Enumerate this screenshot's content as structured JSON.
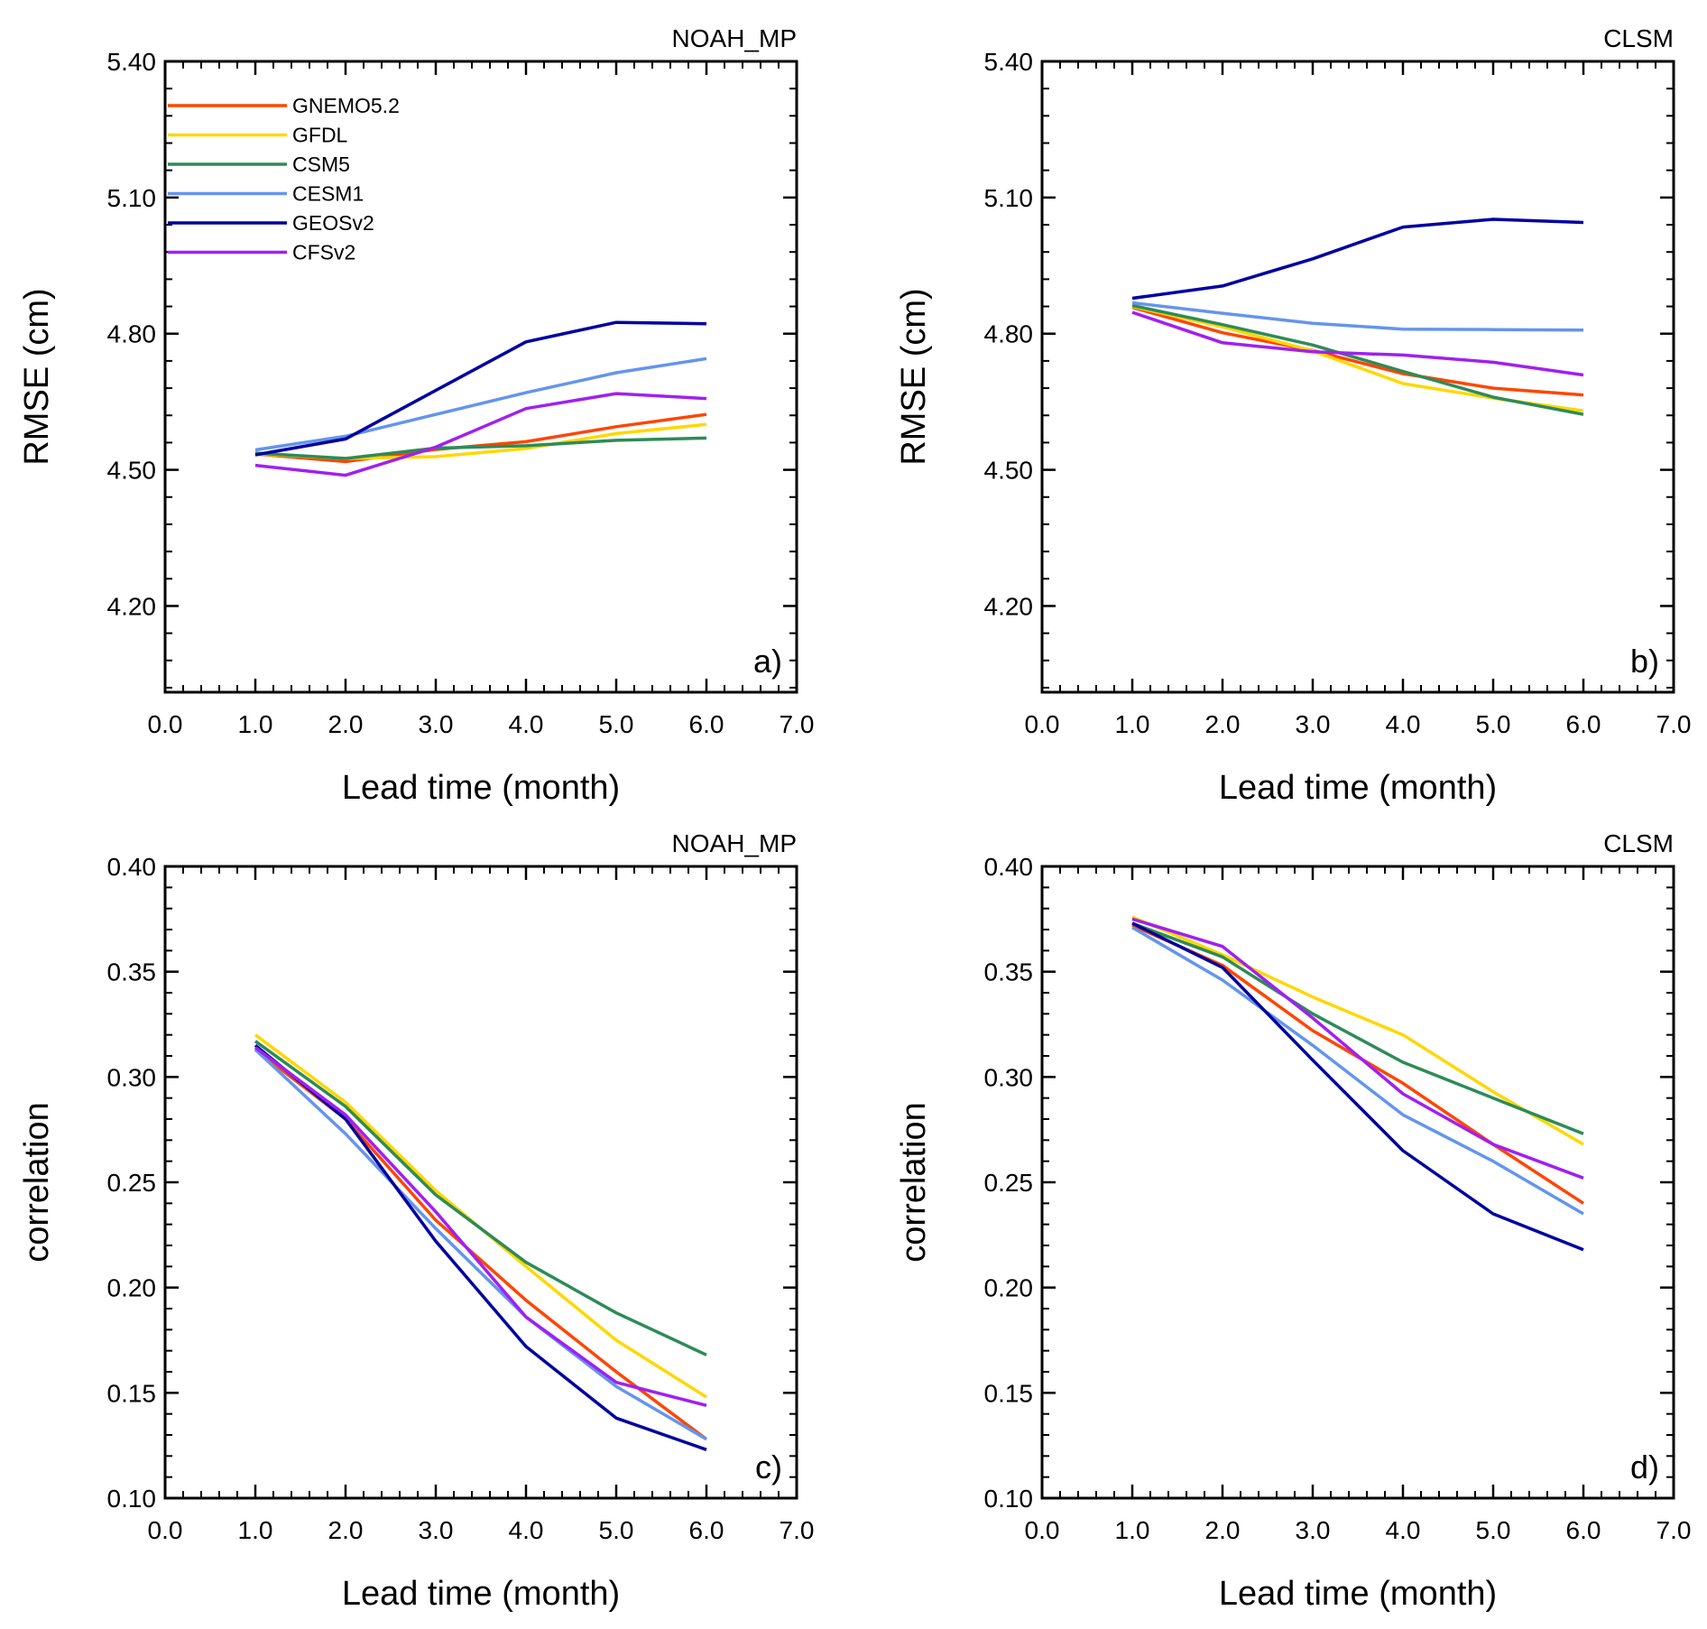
{
  "chart_data": [
    {
      "type": "line",
      "panel_label": "a)",
      "title_right": "NOAH_MP",
      "xlabel": "Lead time (month)",
      "ylabel": "RMSE (cm)",
      "xlim": [
        0,
        7
      ],
      "ylim": [
        4.01,
        5.4
      ],
      "xticks": [
        0,
        1,
        2,
        3,
        4,
        5,
        6,
        7
      ],
      "xtick_labels": [
        "0.0",
        "1.0",
        "2.0",
        "3.0",
        "4.0",
        "5.0",
        "6.0",
        "7.0"
      ],
      "yticks": [
        4.2,
        4.5,
        4.8,
        5.1,
        5.4
      ],
      "ytick_labels": [
        "4.20",
        "4.50",
        "4.80",
        "5.10",
        "5.40"
      ],
      "x": [
        1,
        2,
        3,
        4,
        5,
        6
      ],
      "legend": true,
      "legend_location": "top-left",
      "series": [
        {
          "name": "GNEMO5.2",
          "color": "#ff4500",
          "values": [
            4.535,
            4.518,
            4.545,
            4.562,
            4.595,
            4.622
          ]
        },
        {
          "name": "GFDL",
          "color": "#ffd700",
          "values": [
            4.535,
            4.525,
            4.529,
            4.547,
            4.58,
            4.6
          ]
        },
        {
          "name": "CSM5",
          "color": "#2e8b57",
          "values": [
            4.537,
            4.525,
            4.548,
            4.553,
            4.565,
            4.57
          ]
        },
        {
          "name": "CESM1",
          "color": "#6495ed",
          "values": [
            4.544,
            4.574,
            4.622,
            4.67,
            4.714,
            4.745
          ]
        },
        {
          "name": "GEOSv2",
          "color": "#0000a0",
          "values": [
            4.533,
            4.568,
            4.675,
            4.782,
            4.825,
            4.822
          ]
        },
        {
          "name": "CFSv2",
          "color": "#a020f0",
          "values": [
            4.51,
            4.488,
            4.55,
            4.635,
            4.668,
            4.657
          ]
        }
      ]
    },
    {
      "type": "line",
      "panel_label": "b)",
      "title_right": "CLSM",
      "xlabel": "Lead time (month)",
      "ylabel": "RMSE (cm)",
      "xlim": [
        0,
        7
      ],
      "ylim": [
        4.01,
        5.4
      ],
      "xticks": [
        0,
        1,
        2,
        3,
        4,
        5,
        6,
        7
      ],
      "xtick_labels": [
        "0.0",
        "1.0",
        "2.0",
        "3.0",
        "4.0",
        "5.0",
        "6.0",
        "7.0"
      ],
      "yticks": [
        4.2,
        4.5,
        4.8,
        5.1,
        5.4
      ],
      "ytick_labels": [
        "4.20",
        "4.50",
        "4.80",
        "5.10",
        "5.40"
      ],
      "x": [
        1,
        2,
        3,
        4,
        5,
        6
      ],
      "legend": false,
      "series": [
        {
          "name": "GNEMO5.2",
          "color": "#ff4500",
          "values": [
            4.858,
            4.802,
            4.763,
            4.712,
            4.68,
            4.665
          ]
        },
        {
          "name": "GFDL",
          "color": "#ffd700",
          "values": [
            4.86,
            4.815,
            4.762,
            4.69,
            4.658,
            4.63
          ]
        },
        {
          "name": "CSM5",
          "color": "#2e8b57",
          "values": [
            4.862,
            4.82,
            4.775,
            4.717,
            4.66,
            4.622
          ]
        },
        {
          "name": "CESM1",
          "color": "#6495ed",
          "values": [
            4.868,
            4.845,
            4.823,
            4.81,
            4.809,
            4.808
          ]
        },
        {
          "name": "GEOSv2",
          "color": "#0000a0",
          "values": [
            4.878,
            4.905,
            4.965,
            5.035,
            5.052,
            5.045
          ]
        },
        {
          "name": "CFSv2",
          "color": "#a020f0",
          "values": [
            4.847,
            4.78,
            4.76,
            4.753,
            4.737,
            4.709
          ]
        }
      ]
    },
    {
      "type": "line",
      "panel_label": "c)",
      "title_right": "NOAH_MP",
      "xlabel": "Lead time (month)",
      "ylabel": "correlation",
      "xlim": [
        0,
        7
      ],
      "ylim": [
        0.1,
        0.4
      ],
      "xticks": [
        0,
        1,
        2,
        3,
        4,
        5,
        6,
        7
      ],
      "xtick_labels": [
        "0.0",
        "1.0",
        "2.0",
        "3.0",
        "4.0",
        "5.0",
        "6.0",
        "7.0"
      ],
      "yticks": [
        0.1,
        0.15,
        0.2,
        0.25,
        0.3,
        0.35,
        0.4
      ],
      "ytick_labels": [
        "0.10",
        "0.15",
        "0.20",
        "0.25",
        "0.30",
        "0.35",
        "0.40"
      ],
      "x": [
        1,
        2,
        3,
        4,
        5,
        6
      ],
      "legend": false,
      "series": [
        {
          "name": "GNEMO5.2",
          "color": "#ff4500",
          "values": [
            0.313,
            0.28,
            0.232,
            0.194,
            0.16,
            0.128
          ]
        },
        {
          "name": "GFDL",
          "color": "#ffd700",
          "values": [
            0.32,
            0.288,
            0.246,
            0.21,
            0.175,
            0.148
          ]
        },
        {
          "name": "CSM5",
          "color": "#2e8b57",
          "values": [
            0.317,
            0.286,
            0.244,
            0.212,
            0.188,
            0.168
          ]
        },
        {
          "name": "CESM1",
          "color": "#6495ed",
          "values": [
            0.313,
            0.273,
            0.228,
            0.186,
            0.153,
            0.128
          ]
        },
        {
          "name": "GEOSv2",
          "color": "#0000a0",
          "values": [
            0.315,
            0.28,
            0.222,
            0.172,
            0.138,
            0.123
          ]
        },
        {
          "name": "CFSv2",
          "color": "#a020f0",
          "values": [
            0.314,
            0.282,
            0.236,
            0.186,
            0.155,
            0.144
          ]
        }
      ]
    },
    {
      "type": "line",
      "panel_label": "d)",
      "title_right": "CLSM",
      "xlabel": "Lead time (month)",
      "ylabel": "correlation",
      "xlim": [
        0,
        7
      ],
      "ylim": [
        0.1,
        0.4
      ],
      "xticks": [
        0,
        1,
        2,
        3,
        4,
        5,
        6,
        7
      ],
      "xtick_labels": [
        "0.0",
        "1.0",
        "2.0",
        "3.0",
        "4.0",
        "5.0",
        "6.0",
        "7.0"
      ],
      "yticks": [
        0.1,
        0.15,
        0.2,
        0.25,
        0.3,
        0.35,
        0.4
      ],
      "ytick_labels": [
        "0.10",
        "0.15",
        "0.20",
        "0.25",
        "0.30",
        "0.35",
        "0.40"
      ],
      "x": [
        1,
        2,
        3,
        4,
        5,
        6
      ],
      "legend": false,
      "series": [
        {
          "name": "GNEMO5.2",
          "color": "#ff4500",
          "values": [
            0.372,
            0.353,
            0.322,
            0.297,
            0.268,
            0.24
          ]
        },
        {
          "name": "GFDL",
          "color": "#ffd700",
          "values": [
            0.376,
            0.358,
            0.338,
            0.32,
            0.293,
            0.268
          ]
        },
        {
          "name": "CSM5",
          "color": "#2e8b57",
          "values": [
            0.373,
            0.357,
            0.33,
            0.307,
            0.29,
            0.273
          ]
        },
        {
          "name": "CESM1",
          "color": "#6495ed",
          "values": [
            0.371,
            0.346,
            0.315,
            0.282,
            0.26,
            0.235
          ]
        },
        {
          "name": "GEOSv2",
          "color": "#0000a0",
          "values": [
            0.373,
            0.352,
            0.308,
            0.265,
            0.235,
            0.218
          ]
        },
        {
          "name": "CFSv2",
          "color": "#a020f0",
          "values": [
            0.375,
            0.362,
            0.328,
            0.292,
            0.268,
            0.252
          ]
        }
      ]
    }
  ]
}
